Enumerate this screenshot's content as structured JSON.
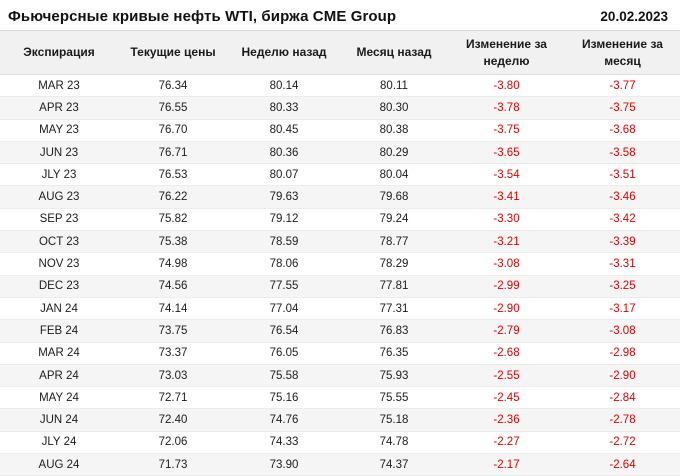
{
  "header": {
    "title": "Фьючерсные кривые нефть WTI, биржа CME Group",
    "date": "20.02.2023"
  },
  "chart_data": {
    "type": "table",
    "title": "Фьючерсные кривые нефть WTI, биржа CME Group",
    "date": "20.02.2023",
    "columns": [
      "Экспирация",
      "Текущие цены",
      "Неделю назад",
      "Месяц назад",
      "Изменение за неделю",
      "Изменение за месяц"
    ],
    "rows": [
      [
        "MAR 23",
        "76.34",
        "80.14",
        "80.11",
        "-3.80",
        "-3.77"
      ],
      [
        "APR 23",
        "76.55",
        "80.33",
        "80.30",
        "-3.78",
        "-3.75"
      ],
      [
        "MAY 23",
        "76.70",
        "80.45",
        "80.38",
        "-3.75",
        "-3.68"
      ],
      [
        "JUN 23",
        "76.71",
        "80.36",
        "80.29",
        "-3.65",
        "-3.58"
      ],
      [
        "JLY 23",
        "76.53",
        "80.07",
        "80.04",
        "-3.54",
        "-3.51"
      ],
      [
        "AUG 23",
        "76.22",
        "79.63",
        "79.68",
        "-3.41",
        "-3.46"
      ],
      [
        "SEP 23",
        "75.82",
        "79.12",
        "79.24",
        "-3.30",
        "-3.42"
      ],
      [
        "OCT 23",
        "75.38",
        "78.59",
        "78.77",
        "-3.21",
        "-3.39"
      ],
      [
        "NOV 23",
        "74.98",
        "78.06",
        "78.29",
        "-3.08",
        "-3.31"
      ],
      [
        "DEC 23",
        "74.56",
        "77.55",
        "77.81",
        "-2.99",
        "-3.25"
      ],
      [
        "JAN 24",
        "74.14",
        "77.04",
        "77.31",
        "-2.90",
        "-3.17"
      ],
      [
        "FEB 24",
        "73.75",
        "76.54",
        "76.83",
        "-2.79",
        "-3.08"
      ],
      [
        "MAR 24",
        "73.37",
        "76.05",
        "76.35",
        "-2.68",
        "-2.98"
      ],
      [
        "APR 24",
        "73.03",
        "75.58",
        "75.93",
        "-2.55",
        "-2.90"
      ],
      [
        "MAY 24",
        "72.71",
        "75.16",
        "75.55",
        "-2.45",
        "-2.84"
      ],
      [
        "JUN 24",
        "72.40",
        "74.76",
        "75.18",
        "-2.36",
        "-2.78"
      ],
      [
        "JLY 24",
        "72.06",
        "74.33",
        "74.78",
        "-2.27",
        "-2.72"
      ],
      [
        "AUG 24",
        "71.73",
        "73.90",
        "74.37",
        "-2.17",
        "-2.64"
      ]
    ]
  },
  "colors": {
    "negative": "#e00000",
    "header_bg": "#f1f1f1",
    "stripe_bg": "#f5f5f5",
    "border": "#dcdcdc"
  }
}
